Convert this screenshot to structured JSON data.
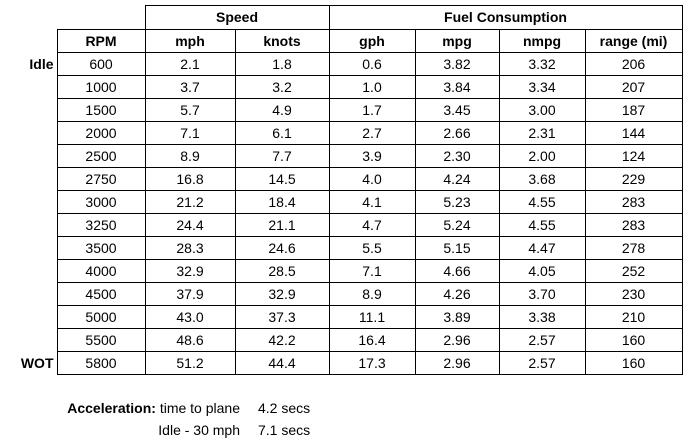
{
  "table": {
    "group_headers": {
      "speed": "Speed",
      "fuel": "Fuel Consumption"
    },
    "columns": [
      "RPM",
      "mph",
      "knots",
      "gph",
      "mpg",
      "nmpg",
      "range (mi)"
    ],
    "rows": [
      {
        "label": "Idle",
        "cells": [
          "600",
          "2.1",
          "1.8",
          "0.6",
          "3.82",
          "3.32",
          "206"
        ]
      },
      {
        "label": "",
        "cells": [
          "1000",
          "3.7",
          "3.2",
          "1.0",
          "3.84",
          "3.34",
          "207"
        ]
      },
      {
        "label": "",
        "cells": [
          "1500",
          "5.7",
          "4.9",
          "1.7",
          "3.45",
          "3.00",
          "187"
        ]
      },
      {
        "label": "",
        "cells": [
          "2000",
          "7.1",
          "6.1",
          "2.7",
          "2.66",
          "2.31",
          "144"
        ]
      },
      {
        "label": "",
        "cells": [
          "2500",
          "8.9",
          "7.7",
          "3.9",
          "2.30",
          "2.00",
          "124"
        ]
      },
      {
        "label": "",
        "cells": [
          "2750",
          "16.8",
          "14.5",
          "4.0",
          "4.24",
          "3.68",
          "229"
        ]
      },
      {
        "label": "",
        "cells": [
          "3000",
          "21.2",
          "18.4",
          "4.1",
          "5.23",
          "4.55",
          "283"
        ]
      },
      {
        "label": "",
        "cells": [
          "3250",
          "24.4",
          "21.1",
          "4.7",
          "5.24",
          "4.55",
          "283"
        ]
      },
      {
        "label": "",
        "cells": [
          "3500",
          "28.3",
          "24.6",
          "5.5",
          "5.15",
          "4.47",
          "278"
        ]
      },
      {
        "label": "",
        "cells": [
          "4000",
          "32.9",
          "28.5",
          "7.1",
          "4.66",
          "4.05",
          "252"
        ]
      },
      {
        "label": "",
        "cells": [
          "4500",
          "37.9",
          "32.9",
          "8.9",
          "4.26",
          "3.70",
          "230"
        ]
      },
      {
        "label": "",
        "cells": [
          "5000",
          "43.0",
          "37.3",
          "11.1",
          "3.89",
          "3.38",
          "210"
        ]
      },
      {
        "label": "",
        "cells": [
          "5500",
          "48.6",
          "42.2",
          "16.4",
          "2.96",
          "2.57",
          "160"
        ]
      },
      {
        "label": "WOT",
        "cells": [
          "5800",
          "51.2",
          "44.4",
          "17.3",
          "2.96",
          "2.57",
          "160"
        ]
      }
    ]
  },
  "acceleration": {
    "heading": "Acceleration:",
    "items": [
      {
        "label": "time to plane",
        "value": "4.2 secs"
      },
      {
        "label": "Idle - 30 mph",
        "value": "7.1 secs"
      }
    ]
  }
}
